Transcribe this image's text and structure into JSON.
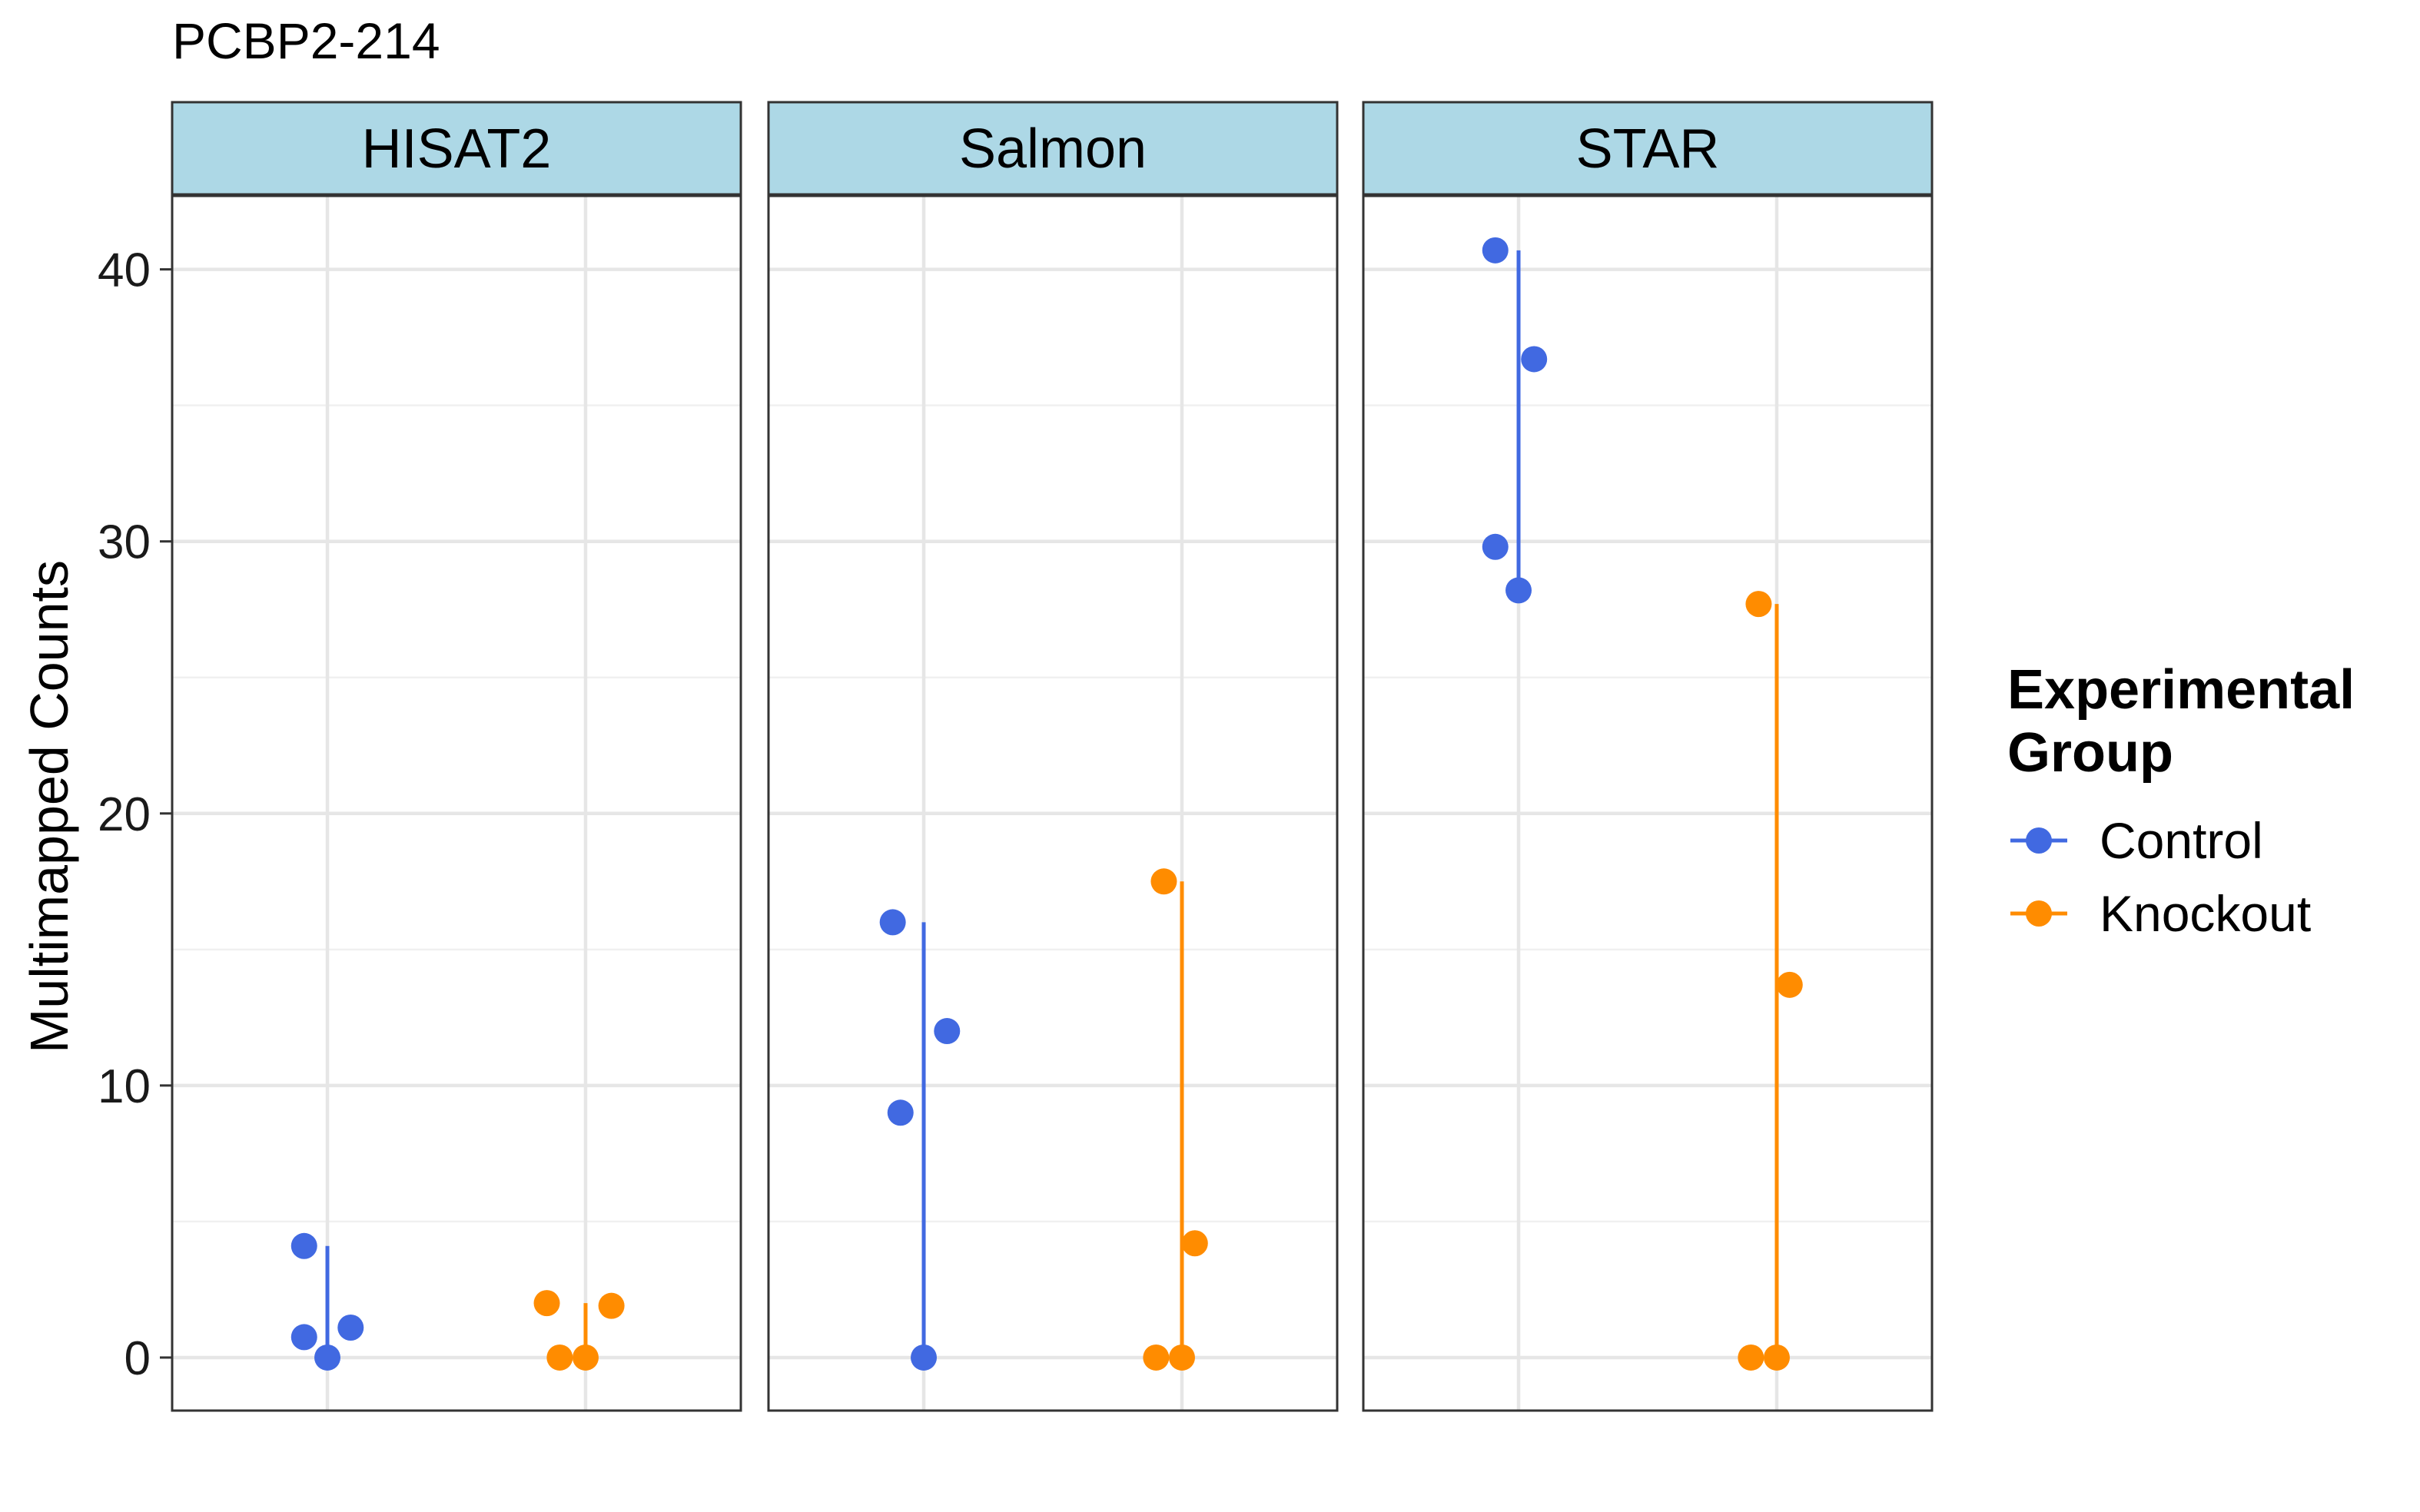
{
  "chart_data": {
    "type": "scatter",
    "title": "PCBP2-214",
    "xlabel": "",
    "ylabel": "Multimapped Counts",
    "ylim": [
      -1.95,
      42.7
    ],
    "yticks": [
      0,
      10,
      20,
      30,
      40
    ],
    "grid": true,
    "legend": {
      "title": "Experimental Group",
      "title_lines": [
        "Experimental",
        "Group"
      ],
      "placement": "right"
    },
    "groups": [
      "Control",
      "Knockout"
    ],
    "colors": {
      "Control": "#4169E1",
      "Knockout": "#FF8C00"
    },
    "panel_strip_color": "#ADD8E6",
    "panels": [
      {
        "name": "HISAT2",
        "series": [
          {
            "name": "Control",
            "x_offset": [
              -0.09,
              -0.09,
              0.0,
              0.09
            ],
            "values": [
              4.1,
              0.75,
              0.0,
              1.1
            ],
            "range": [
              0.0,
              4.1
            ]
          },
          {
            "name": "Knockout",
            "x_offset": [
              -0.15,
              -0.1,
              0.0,
              0.1
            ],
            "values": [
              2.0,
              0.0,
              0.0,
              1.9
            ],
            "range": [
              0.0,
              2.0
            ]
          }
        ]
      },
      {
        "name": "Salmon",
        "series": [
          {
            "name": "Control",
            "x_offset": [
              -0.12,
              -0.09,
              0.0,
              0.09
            ],
            "values": [
              16.0,
              9.0,
              0.0,
              12.0
            ],
            "range": [
              0.0,
              16.0
            ]
          },
          {
            "name": "Knockout",
            "x_offset": [
              -0.07,
              -0.1,
              0.0,
              0.05
            ],
            "values": [
              17.5,
              0.0,
              0.0,
              4.2
            ],
            "range": [
              0.0,
              17.5
            ]
          }
        ]
      },
      {
        "name": "STAR",
        "series": [
          {
            "name": "Control",
            "x_offset": [
              -0.09,
              -0.09,
              0.0,
              0.06
            ],
            "values": [
              40.7,
              29.8,
              28.2,
              36.7
            ],
            "range": [
              28.2,
              40.7
            ]
          },
          {
            "name": "Knockout",
            "x_offset": [
              -0.07,
              -0.1,
              0.0,
              0.05
            ],
            "values": [
              27.7,
              0.0,
              0.0,
              13.7
            ],
            "range": [
              0.0,
              27.7
            ]
          }
        ]
      }
    ]
  }
}
